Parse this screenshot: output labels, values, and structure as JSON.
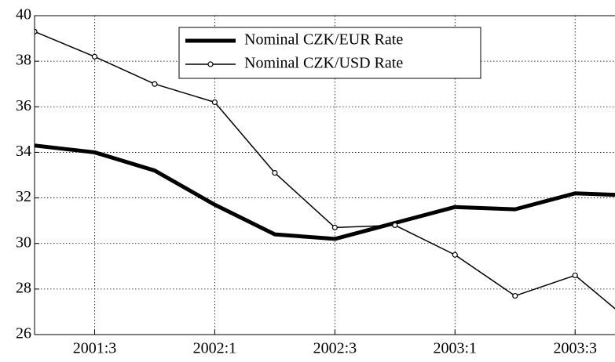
{
  "chart_data": {
    "type": "line",
    "x": [
      2001.25,
      2001.5,
      2001.75,
      2002.0,
      2002.25,
      2002.5,
      2002.75,
      2003.0,
      2003.25,
      2003.5,
      2003.75
    ],
    "series": [
      {
        "name": "Nominal CZK/EUR Rate",
        "color": "#000000",
        "values": [
          34.3,
          34.0,
          33.2,
          31.7,
          30.4,
          30.2,
          30.9,
          31.6,
          31.5,
          32.2,
          32.1
        ]
      },
      {
        "name": "Nominal CZK/USD Rate",
        "color": "#000000",
        "values": [
          39.3,
          38.2,
          37.0,
          36.2,
          33.1,
          30.7,
          30.8,
          29.5,
          27.7,
          28.6,
          26.4
        ]
      }
    ],
    "xlim": [
      2001.25,
      2003.666
    ],
    "xticks": [
      {
        "value": 2001.5,
        "label": "2001:3"
      },
      {
        "value": 2002.0,
        "label": "2002:1"
      },
      {
        "value": 2002.5,
        "label": "2002:3"
      },
      {
        "value": 2003.0,
        "label": "2003:1"
      },
      {
        "value": 2003.5,
        "label": "2003:3"
      }
    ],
    "ylim": [
      26,
      40
    ],
    "yticks": [
      26,
      28,
      30,
      32,
      34,
      36,
      38,
      40
    ],
    "grid": true
  }
}
